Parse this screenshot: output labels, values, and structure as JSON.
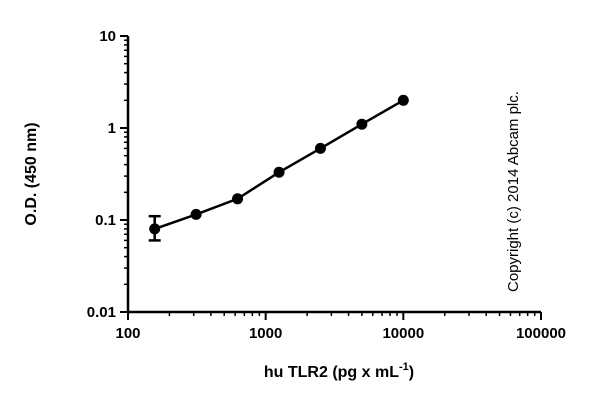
{
  "chart_data": {
    "type": "scatter",
    "title": "",
    "xlabel": "hu TLR2 (pg x mL",
    "xlabel_superscript": "-1",
    "xlabel_suffix": ")",
    "ylabel": "O.D. (450 nm)",
    "xscale": "log",
    "yscale": "log",
    "xlim": [
      100,
      100000
    ],
    "ylim": [
      0.01,
      10
    ],
    "x_tick_labels": [
      "100",
      "1000",
      "10000",
      "100000"
    ],
    "y_tick_labels": [
      "0.01",
      "0.1",
      "1",
      "10"
    ],
    "grid": false,
    "legend": "none",
    "series": [
      {
        "x": [
          156.25,
          312.5,
          625,
          1250,
          2500,
          5000,
          10000
        ],
        "y": [
          0.08,
          0.115,
          0.17,
          0.33,
          0.6,
          1.1,
          2.0
        ],
        "y_err_low": [
          0.06,
          null,
          null,
          null,
          null,
          null,
          null
        ],
        "y_err_high": [
          0.11,
          null,
          null,
          null,
          null,
          null,
          null
        ],
        "color": "#000000",
        "connected": true
      }
    ]
  },
  "annotation": {
    "copyright": "Copyright (c) 2014 Abcam plc."
  }
}
